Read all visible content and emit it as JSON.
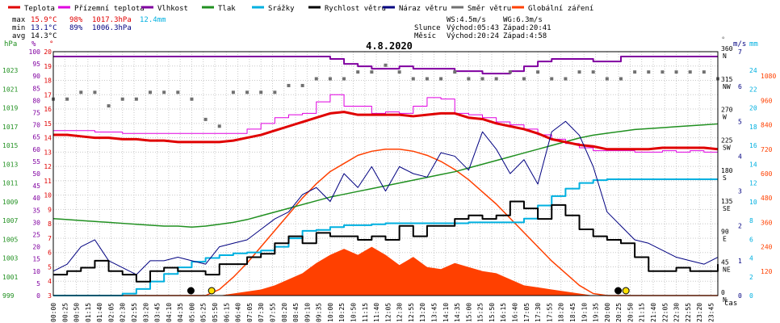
{
  "title": "4.8.2020",
  "legend": [
    {
      "label": "Teplota",
      "color": "#e00000"
    },
    {
      "label": "Přízemní teplota",
      "color": "#e000e0"
    },
    {
      "label": "Vlhkost",
      "color": "#8000a0"
    },
    {
      "label": "Tlak",
      "color": "#209020"
    },
    {
      "label": "Srážky",
      "color": "#00b0e0"
    },
    {
      "label": "Rychlost větru",
      "color": "#000000"
    },
    {
      "label": "Náraz větru",
      "color": "#000080"
    },
    {
      "label": "Směr větru",
      "color": "#707070"
    },
    {
      "label": "Globální záření",
      "color": "#ff4000"
    }
  ],
  "stats": {
    "max_label": "max",
    "max_temp": "15.9°C",
    "max_hum": "98%",
    "max_press": "1017.3hPa",
    "max_rain": "12.4mm",
    "min_label": "min",
    "min_temp": "13.1°C",
    "min_hum": "89%",
    "min_press": "1006.3hPa",
    "avg_label": "avg",
    "avg_temp": "14.3°C"
  },
  "wind_info": {
    "ws": "WS:4.5m/s",
    "wg": "WG:6.3m/s"
  },
  "sun_info": {
    "label": "Slunce",
    "rise": "Východ:05:43",
    "set": "Západ:20:41"
  },
  "moon_info": {
    "label": "Měsíc",
    "rise": "Východ:20:24",
    "set": "Západ:4:58"
  },
  "axis_units": {
    "hpa": "hPa",
    "pct": "%",
    "temp": "°",
    "wind_speed": "m/s",
    "rain": "mm",
    "deg": "°",
    "time": "čas"
  },
  "colors": {
    "temp": "#e00000",
    "ground": "#e000e0",
    "hum": "#8000a0",
    "press": "#209020",
    "rain": "#00b0e0",
    "wind": "#000000",
    "gust": "#000080",
    "dir": "#707070",
    "rad": "#ff4000",
    "grid": "#c8c8c8",
    "sun_marker": "#ffe000"
  },
  "chart_data": {
    "type": "line",
    "date": "4.8.2020",
    "x_hours": [
      0,
      0.5,
      1,
      1.5,
      2,
      2.5,
      3,
      3.5,
      4,
      4.5,
      5,
      5.5,
      6,
      6.5,
      7,
      7.5,
      8,
      8.5,
      9,
      9.5,
      10,
      10.5,
      11,
      11.5,
      12,
      12.5,
      13,
      13.5,
      14,
      14.5,
      15,
      15.5,
      16,
      16.5,
      17,
      17.5,
      18,
      18.5,
      19,
      19.5,
      20,
      20.5,
      21,
      21.5,
      22,
      22.5,
      23,
      23.5,
      24
    ],
    "x_tick_labels": [
      "00:00",
      "00:25",
      "00:50",
      "01:15",
      "01:40",
      "02:05",
      "02:30",
      "02:55",
      "03:20",
      "03:45",
      "04:10",
      "04:35",
      "05:00",
      "05:25",
      "05:50",
      "06:15",
      "06:40",
      "07:05",
      "07:30",
      "07:55",
      "08:20",
      "08:45",
      "09:10",
      "09:35",
      "10:00",
      "10:25",
      "10:50",
      "11:15",
      "11:40",
      "12:05",
      "12:30",
      "12:55",
      "13:20",
      "13:45",
      "14:10",
      "14:35",
      "15:00",
      "15:25",
      "15:50",
      "16:15",
      "16:40",
      "17:05",
      "17:30",
      "17:55",
      "18:20",
      "18:45",
      "19:10",
      "19:35",
      "20:00",
      "20:25",
      "20:50",
      "21:15",
      "21:40",
      "22:05",
      "22:30",
      "22:55",
      "23:20",
      "23:45"
    ],
    "axes": {
      "pressure_hpa": {
        "min": 999,
        "max": 1025,
        "ticks": [
          999,
          1001,
          1003,
          1005,
          1007,
          1009,
          1011,
          1013,
          1015,
          1017,
          1019,
          1021,
          1023
        ]
      },
      "humidity_pct": {
        "min": 0,
        "max": 100,
        "ticks": [
          0,
          5,
          10,
          15,
          20,
          25,
          30,
          35,
          40,
          45,
          50,
          55,
          60,
          65,
          70,
          75,
          80,
          85,
          90,
          95,
          100
        ]
      },
      "temperature_c": {
        "min": 3,
        "max": 20,
        "ticks": [
          3,
          4,
          5,
          6,
          7,
          8,
          9,
          10,
          11,
          12,
          13,
          14,
          15,
          16,
          17,
          18,
          19,
          20
        ]
      },
      "wind_direction_deg": {
        "min": 0,
        "max": 360,
        "ticks": [
          0,
          45,
          90,
          135,
          180,
          225,
          270,
          315,
          360
        ],
        "labels": [
          "N",
          "NE",
          "E",
          "SE",
          "S",
          "SW",
          "W",
          "NW",
          "N"
        ]
      },
      "wind_speed_ms": {
        "min": 0,
        "max": 7,
        "ticks": [
          0,
          1,
          2,
          3,
          4,
          5,
          6,
          7
        ]
      },
      "rain_mm": {
        "min": 0,
        "max": 26,
        "ticks": [
          0,
          2,
          4,
          6,
          8,
          10,
          12,
          14,
          16,
          18,
          20,
          22,
          24
        ]
      },
      "radiation_wm2": {
        "min": 0,
        "max": 1200,
        "ticks": [
          120,
          240,
          360,
          480,
          600,
          720,
          840,
          960,
          1080
        ]
      }
    },
    "series": [
      {
        "name": "Teplota",
        "axis": "temperature_c",
        "values": [
          14.2,
          14.2,
          14.1,
          14.0,
          14.0,
          13.9,
          13.9,
          13.8,
          13.8,
          13.7,
          13.7,
          13.7,
          13.7,
          13.8,
          14.0,
          14.2,
          14.5,
          14.8,
          15.1,
          15.4,
          15.7,
          15.8,
          15.6,
          15.6,
          15.6,
          15.6,
          15.5,
          15.6,
          15.7,
          15.7,
          15.4,
          15.3,
          15.0,
          14.8,
          14.6,
          14.3,
          13.9,
          13.7,
          13.5,
          13.4,
          13.2,
          13.2,
          13.2,
          13.2,
          13.3,
          13.3,
          13.3,
          13.3,
          13.2
        ]
      },
      {
        "name": "Přízemní teplota",
        "axis": "temperature_c",
        "values": [
          14.5,
          14.5,
          14.5,
          14.4,
          14.4,
          14.3,
          14.3,
          14.3,
          14.3,
          14.3,
          14.3,
          14.3,
          14.3,
          14.3,
          14.6,
          15.0,
          15.4,
          15.6,
          15.7,
          16.5,
          17.0,
          16.2,
          16.2,
          15.7,
          15.8,
          15.7,
          16.2,
          16.8,
          16.7,
          15.7,
          15.6,
          15.4,
          15.1,
          14.9,
          14.6,
          14.2,
          13.9,
          13.6,
          13.3,
          13.1,
          13.1,
          13.1,
          13.0,
          13.0,
          13.1,
          13.0,
          13.1,
          13.0,
          13.0
        ]
      },
      {
        "name": "Vlhkost",
        "axis": "humidity_pct",
        "values": [
          98,
          98,
          98,
          98,
          98,
          98,
          98,
          98,
          98,
          98,
          98,
          98,
          98,
          98,
          98,
          98,
          98,
          98,
          98,
          98,
          97,
          95,
          94,
          93,
          93,
          94,
          93,
          93,
          93,
          92,
          92,
          91,
          91,
          92,
          94,
          96,
          97,
          97,
          97,
          96,
          96,
          98,
          98,
          98,
          98,
          98,
          98,
          98,
          98
        ]
      },
      {
        "name": "Tlak",
        "axis": "pressure_hpa",
        "values": [
          1007.2,
          1007.1,
          1007.0,
          1006.9,
          1006.8,
          1006.7,
          1006.6,
          1006.5,
          1006.4,
          1006.4,
          1006.3,
          1006.4,
          1006.6,
          1006.8,
          1007.1,
          1007.5,
          1007.9,
          1008.3,
          1008.7,
          1009.1,
          1009.5,
          1009.8,
          1010.1,
          1010.4,
          1010.7,
          1011.0,
          1011.3,
          1011.6,
          1011.9,
          1012.2,
          1012.6,
          1013.0,
          1013.4,
          1013.8,
          1014.2,
          1014.6,
          1015.0,
          1015.4,
          1015.8,
          1016.1,
          1016.3,
          1016.5,
          1016.7,
          1016.8,
          1016.9,
          1017.0,
          1017.1,
          1017.2,
          1017.3
        ]
      },
      {
        "name": "Srážky",
        "axis": "rain_mm",
        "values": [
          0,
          0,
          0,
          0,
          0,
          0.2,
          0.7,
          1.5,
          2.3,
          3.0,
          3.6,
          4.0,
          4.3,
          4.5,
          4.6,
          4.8,
          5.2,
          6.1,
          6.9,
          7.0,
          7.3,
          7.5,
          7.5,
          7.6,
          7.7,
          7.7,
          7.7,
          7.7,
          7.7,
          7.7,
          7.8,
          7.8,
          7.8,
          7.8,
          8.2,
          9.6,
          10.6,
          11.4,
          12.0,
          12.3,
          12.4,
          12.4,
          12.4,
          12.4,
          12.4,
          12.4,
          12.4,
          12.4,
          12.4
        ]
      },
      {
        "name": "Rychlost větru",
        "axis": "wind_speed_ms",
        "values": [
          0.6,
          0.7,
          0.8,
          1.0,
          0.7,
          0.6,
          0.4,
          0.7,
          0.8,
          0.7,
          0.7,
          0.6,
          0.9,
          0.9,
          1.1,
          1.2,
          1.5,
          1.7,
          1.5,
          1.8,
          1.7,
          1.7,
          1.6,
          1.7,
          1.6,
          2.0,
          1.7,
          2.0,
          2.0,
          2.2,
          2.3,
          2.2,
          2.3,
          2.7,
          2.5,
          2.2,
          2.6,
          2.3,
          1.9,
          1.7,
          1.6,
          1.5,
          1.1,
          0.7,
          0.7,
          0.8,
          0.7,
          0.7,
          0.9
        ]
      },
      {
        "name": "Náraz větru",
        "axis": "wind_speed_ms",
        "values": [
          0.7,
          0.9,
          1.4,
          1.6,
          1.0,
          0.8,
          0.6,
          1.0,
          1.0,
          1.1,
          1.0,
          0.9,
          1.4,
          1.5,
          1.6,
          1.9,
          2.2,
          2.4,
          2.9,
          3.1,
          2.7,
          3.5,
          3.1,
          3.7,
          3.0,
          3.7,
          3.5,
          3.4,
          4.1,
          4.0,
          3.6,
          4.7,
          4.2,
          3.5,
          3.9,
          3.2,
          4.7,
          5.0,
          4.6,
          3.7,
          2.4,
          2.0,
          1.6,
          1.5,
          1.3,
          1.1,
          1.0,
          0.9,
          1.1
        ]
      },
      {
        "name": "Směr větru",
        "axis": "wind_direction_deg",
        "values": [
          290,
          290,
          300,
          300,
          280,
          290,
          290,
          300,
          300,
          300,
          290,
          260,
          250,
          300,
          300,
          300,
          300,
          310,
          310,
          320,
          320,
          320,
          330,
          330,
          340,
          330,
          320,
          320,
          320,
          330,
          320,
          320,
          320,
          330,
          320,
          330,
          320,
          320,
          330,
          330,
          320,
          320,
          330,
          330,
          330,
          330,
          330,
          330,
          320
        ]
      },
      {
        "name": "Globální záření",
        "axis": "radiation_wm2",
        "values": [
          0,
          0,
          0,
          0,
          0,
          0,
          0,
          0,
          0,
          0,
          0,
          0,
          30,
          90,
          160,
          240,
          320,
          400,
          480,
          550,
          610,
          650,
          690,
          710,
          720,
          720,
          710,
          690,
          660,
          620,
          570,
          510,
          450,
          380,
          310,
          240,
          170,
          110,
          50,
          10,
          0,
          0,
          0,
          0,
          0,
          0,
          0,
          0,
          0
        ]
      },
      {
        "name": "Globální záření plocha",
        "axis": "radiation_wm2",
        "values": [
          0,
          0,
          0,
          0,
          0,
          0,
          0,
          0,
          0,
          0,
          0,
          0,
          0,
          10,
          20,
          30,
          50,
          80,
          110,
          160,
          200,
          230,
          200,
          240,
          200,
          150,
          190,
          140,
          130,
          160,
          140,
          120,
          110,
          80,
          50,
          40,
          30,
          20,
          10,
          0,
          0,
          0,
          0,
          0,
          0,
          0,
          0,
          0,
          0
        ]
      }
    ],
    "markers": [
      {
        "name": "moonset",
        "time": "04:58",
        "hour": 4.97,
        "color": "#000000"
      },
      {
        "name": "sunrise",
        "time": "05:43",
        "hour": 5.72,
        "color": "#ffe000"
      },
      {
        "name": "moonrise",
        "time": "20:24",
        "hour": 20.4,
        "color": "#000000"
      },
      {
        "name": "sunset",
        "time": "20:41",
        "hour": 20.68,
        "color": "#ffe000"
      }
    ],
    "grid": true
  }
}
